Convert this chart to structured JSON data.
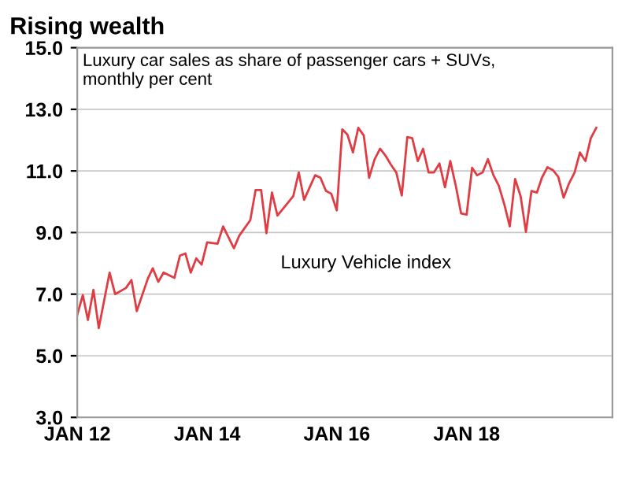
{
  "chart_data": {
    "type": "line",
    "title": "Rising wealth",
    "subtitle": "Luxury car sales as share of passenger cars + SUVs,\nmonthly per cent",
    "annotations": [
      "Luxury Vehicle index"
    ],
    "x": [
      "2012-01",
      "2012-02",
      "2012-03",
      "2012-04",
      "2012-05",
      "2012-07",
      "2012-08",
      "2012-10",
      "2012-11",
      "2012-12",
      "2013-02",
      "2013-03",
      "2013-04",
      "2013-05",
      "2013-07",
      "2013-08",
      "2013-09",
      "2013-10",
      "2013-11",
      "2013-12",
      "2014-01",
      "2014-03",
      "2014-04",
      "2014-06",
      "2014-07",
      "2014-09",
      "2014-10",
      "2014-11",
      "2014-12",
      "2015-01",
      "2015-02",
      "2015-05",
      "2015-06",
      "2015-07",
      "2015-09",
      "2015-10",
      "2015-11",
      "2015-12",
      "2016-01",
      "2016-02",
      "2016-03",
      "2016-04",
      "2016-05",
      "2016-06",
      "2016-07",
      "2016-08",
      "2016-09",
      "2016-10",
      "2016-11",
      "2016-12",
      "2017-01",
      "2017-02",
      "2017-03",
      "2017-04",
      "2017-05",
      "2017-06",
      "2017-07",
      "2017-08",
      "2017-09",
      "2017-10",
      "2017-11",
      "2017-12",
      "2018-01",
      "2018-02",
      "2018-03",
      "2018-04",
      "2018-05",
      "2018-06",
      "2018-07",
      "2018-08",
      "2018-09",
      "2018-10",
      "2018-11",
      "2018-12",
      "2019-01",
      "2019-02",
      "2019-03",
      "2019-04",
      "2019-05",
      "2019-06",
      "2019-07",
      "2019-08",
      "2019-09",
      "2019-10",
      "2019-11",
      "2019-12",
      "2020-01"
    ],
    "series": [
      {
        "color": "#e03c44",
        "values": [
          6.33,
          6.97,
          6.16,
          7.14,
          5.9,
          7.7,
          7.0,
          7.2,
          7.46,
          6.45,
          7.5,
          7.84,
          7.4,
          7.7,
          7.53,
          8.25,
          8.32,
          7.7,
          8.16,
          7.96,
          8.68,
          8.64,
          9.2,
          8.49,
          8.9,
          9.4,
          10.38,
          10.38,
          8.98,
          10.3,
          9.55,
          10.18,
          10.95,
          10.06,
          10.86,
          10.78,
          10.35,
          10.26,
          9.72,
          12.35,
          12.18,
          11.6,
          12.4,
          12.15,
          10.78,
          11.38,
          11.72,
          11.5,
          11.2,
          10.95,
          10.2,
          12.1,
          12.06,
          11.32,
          11.72,
          10.95,
          10.95,
          11.24,
          10.47,
          11.32,
          10.52,
          9.62,
          9.58,
          11.1,
          10.86,
          10.95,
          11.38,
          10.86,
          10.52,
          9.92,
          9.2,
          10.74,
          10.18,
          9.02,
          10.35,
          10.3,
          10.78,
          11.12,
          11.03,
          10.81,
          10.13,
          10.6,
          10.95,
          11.6,
          11.32,
          12.06,
          12.4
        ]
      }
    ],
    "xlim": [
      "2012-01",
      "2020-04"
    ],
    "xticks": [
      {
        "value": "2012-01",
        "label": "JAN 12"
      },
      {
        "value": "2014-01",
        "label": "JAN 14"
      },
      {
        "value": "2016-01",
        "label": "JAN 16"
      },
      {
        "value": "2018-01",
        "label": "JAN 18"
      }
    ],
    "ylim": [
      3,
      15
    ],
    "yticks": [
      {
        "value": 3,
        "label": "3.0"
      },
      {
        "value": 5,
        "label": "5.0"
      },
      {
        "value": 7,
        "label": "7.0"
      },
      {
        "value": 9,
        "label": "9.0"
      },
      {
        "value": 11,
        "label": "11.0"
      },
      {
        "value": 13,
        "label": "13.0"
      },
      {
        "value": 15,
        "label": "15.0"
      }
    ],
    "grid": "y"
  }
}
